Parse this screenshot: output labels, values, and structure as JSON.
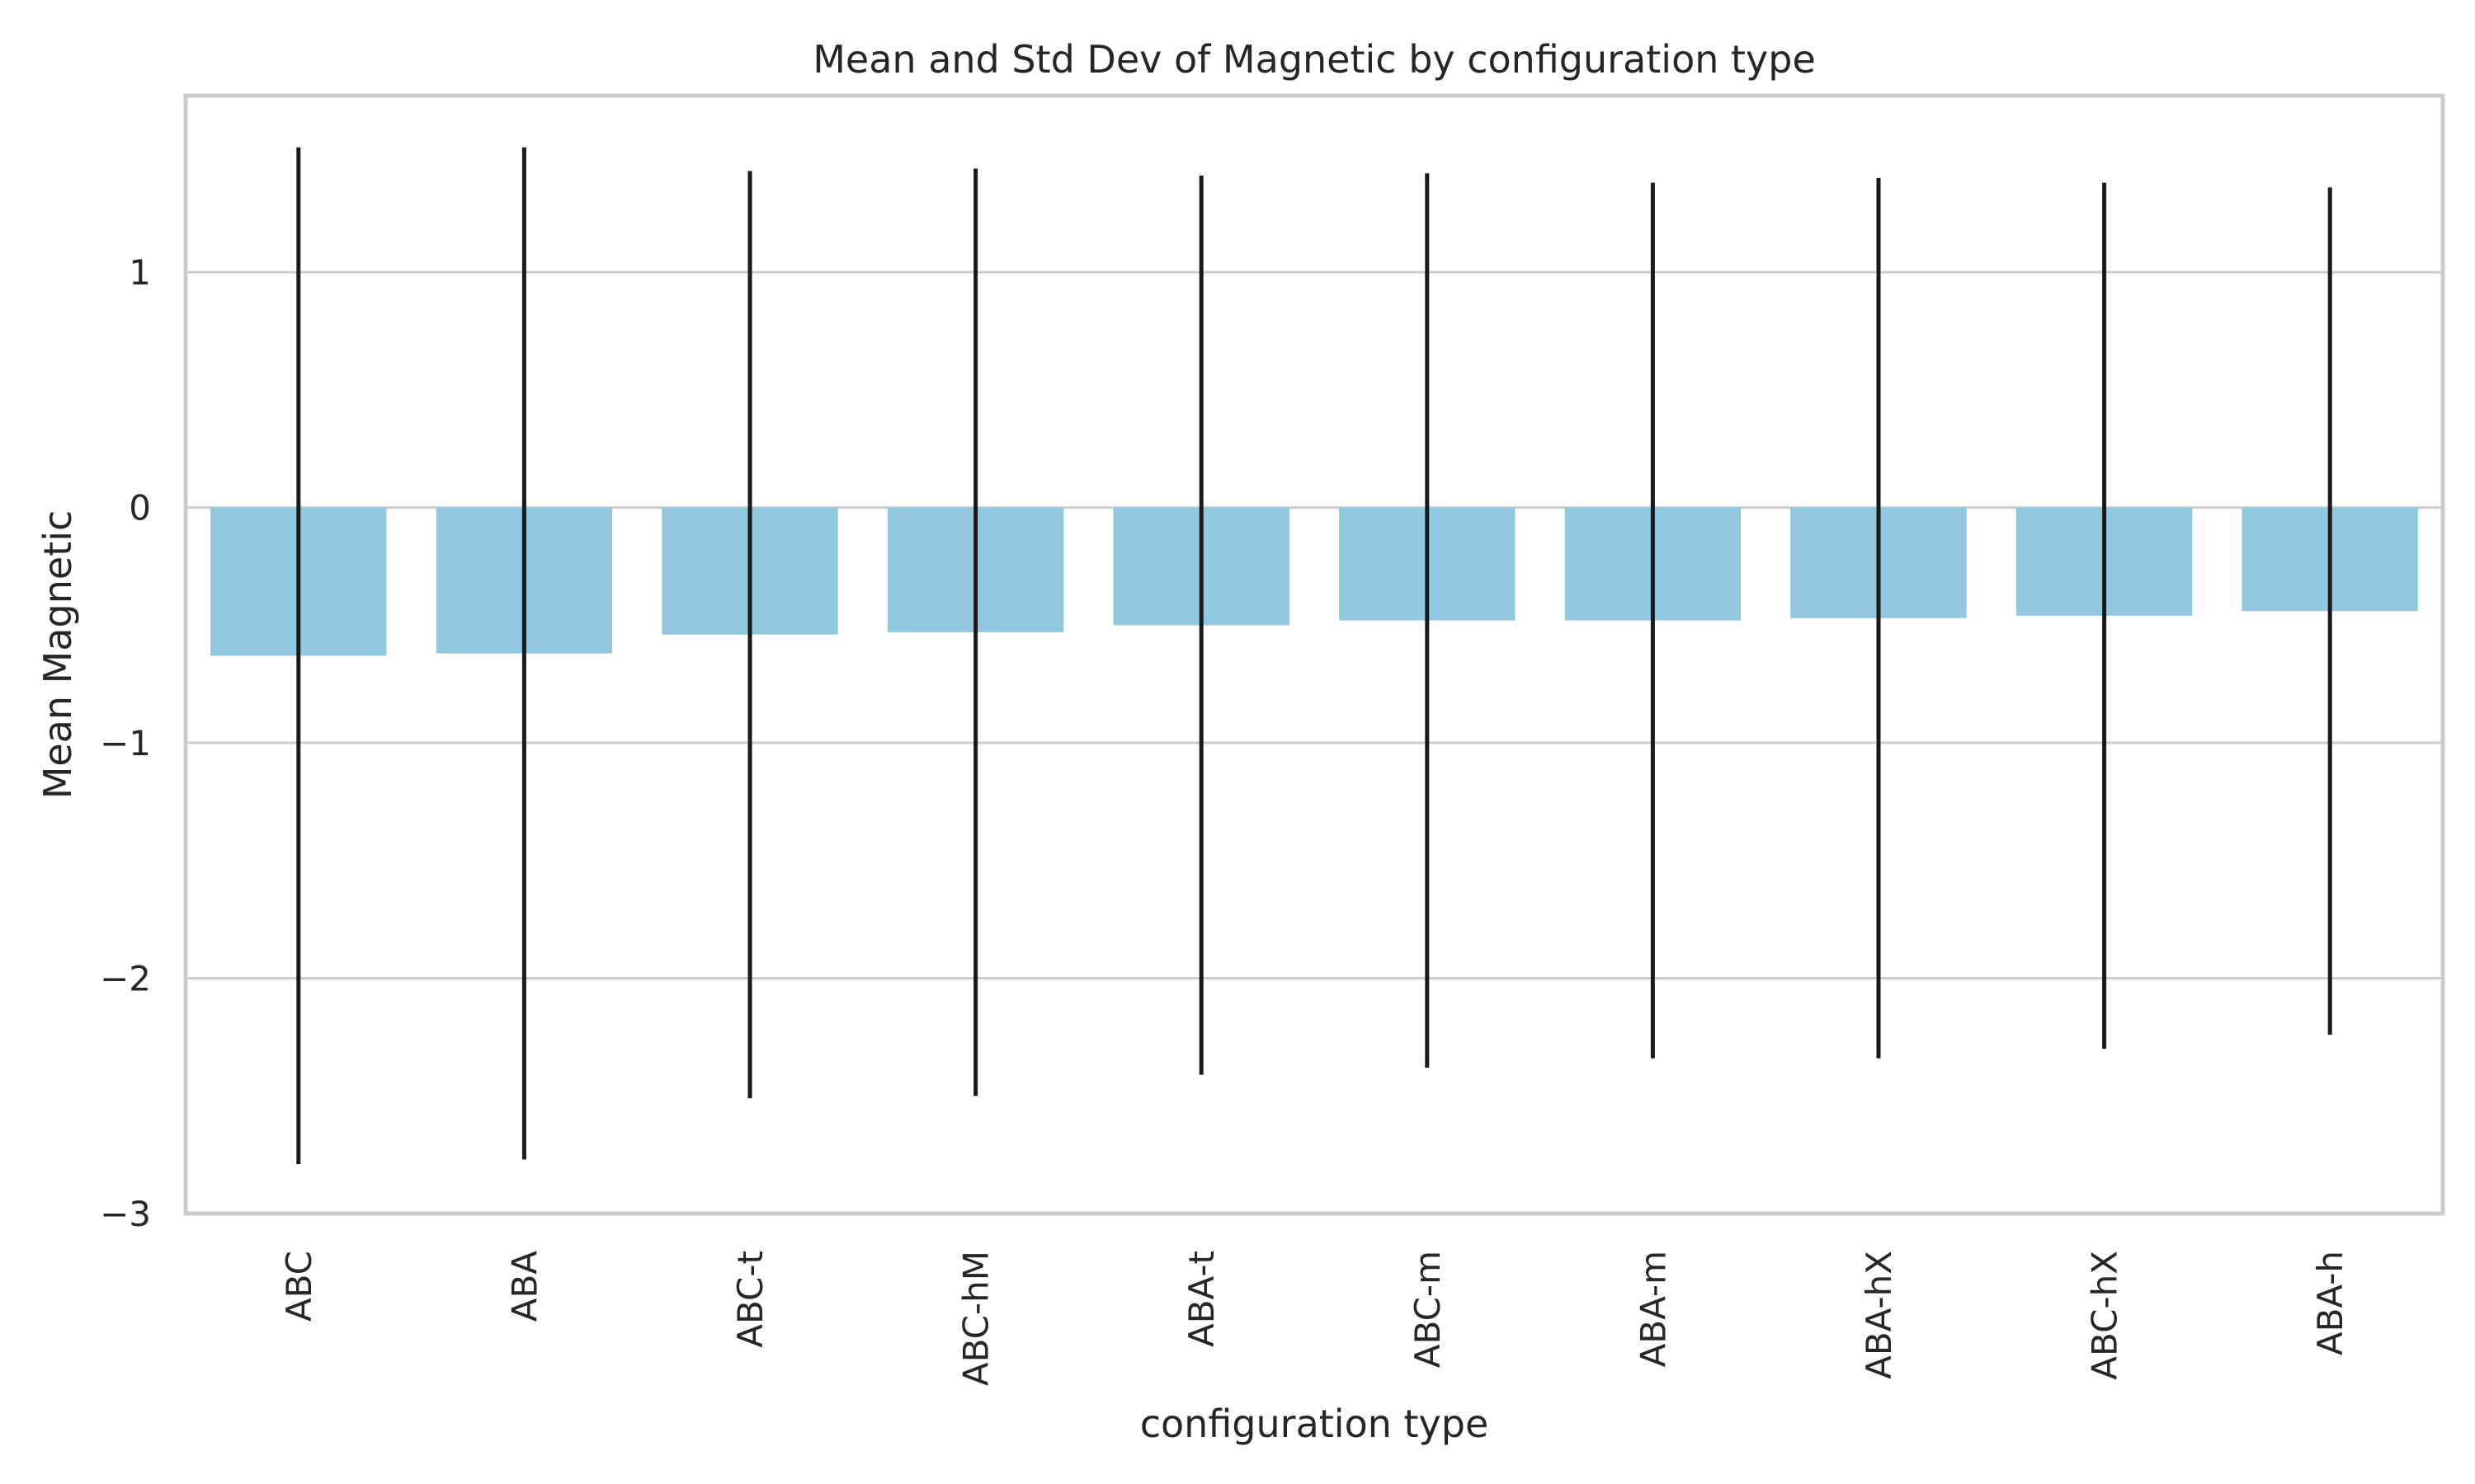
{
  "chart_data": {
    "type": "bar",
    "title": "Mean and Std Dev of Magnetic by configuration type",
    "xlabel": "configuration type",
    "ylabel": "Mean Magnetic",
    "categories": [
      "ABC",
      "ABA",
      "ABC-t",
      "ABC-hM",
      "ABA-t",
      "ABC-m",
      "ABA-m",
      "ABA-hX",
      "ABC-hX",
      "ABA-h"
    ],
    "values": [
      -0.63,
      -0.62,
      -0.54,
      -0.53,
      -0.5,
      -0.48,
      -0.48,
      -0.47,
      -0.46,
      -0.44
    ],
    "std": [
      2.16,
      2.15,
      1.97,
      1.97,
      1.91,
      1.9,
      1.86,
      1.87,
      1.84,
      1.8
    ],
    "ylim": [
      -3,
      1.75
    ],
    "yticks": [
      -3,
      -2,
      -1,
      0,
      1
    ],
    "ytick_labels": [
      "−3",
      "−2",
      "−1",
      "0",
      "1"
    ],
    "grid": true,
    "bar_color": "#92c8df",
    "errorbar_color": "#1a1a1a"
  }
}
